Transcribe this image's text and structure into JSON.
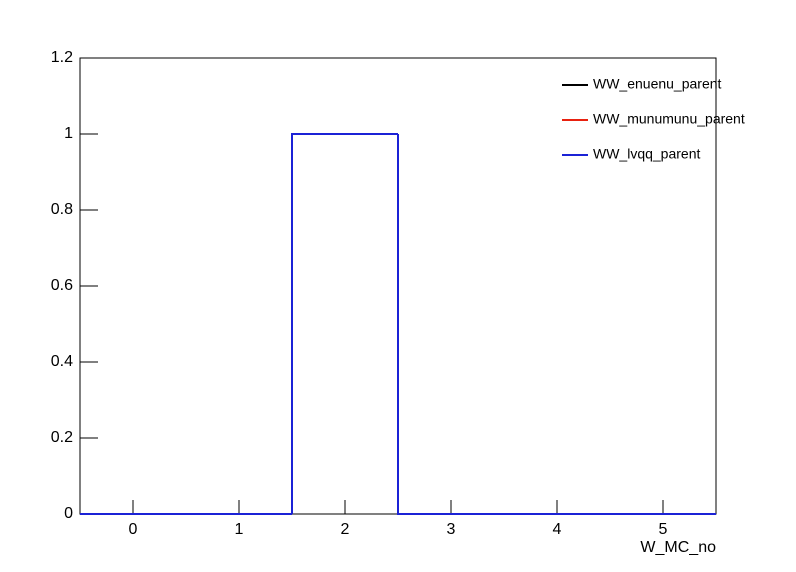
{
  "chart_data": {
    "type": "histogram",
    "x_label": "W_MC_no",
    "bins": [
      -0.5,
      0.5,
      1.5,
      2.5,
      3.5,
      4.5,
      5.5
    ],
    "series": [
      {
        "name": "WW_enuenu_parent",
        "color": "#000000",
        "values": [
          0,
          0,
          1,
          0,
          0,
          0
        ]
      },
      {
        "name": "WW_munumunu_parent",
        "color": "#e8210f",
        "values": [
          0,
          0,
          1,
          0,
          0,
          0
        ]
      },
      {
        "name": "WW_lvqq_parent",
        "color": "#1b22d6",
        "values": [
          0,
          0,
          1,
          0,
          0,
          0
        ]
      }
    ],
    "xlim": [
      -0.5,
      5.5
    ],
    "xticks": [
      0,
      1,
      2,
      3,
      4,
      5
    ],
    "ylim": [
      0,
      1.2
    ],
    "yticks": [
      0,
      0.2,
      0.4,
      0.6,
      0.8,
      1,
      1.2
    ],
    "legend": "top-right"
  }
}
